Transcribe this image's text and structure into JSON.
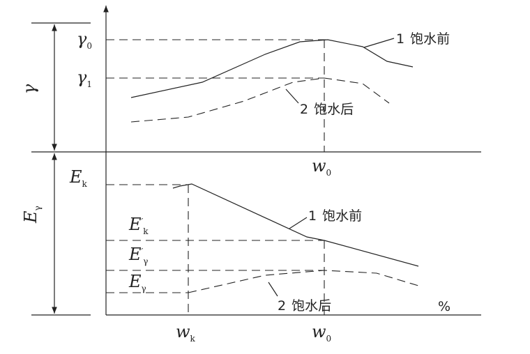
{
  "top_panel": {
    "axis_label": "γ",
    "marks": [
      {
        "symbol": "γ",
        "sub": "0"
      },
      {
        "symbol": "γ",
        "sub": "1"
      }
    ],
    "curves": [
      {
        "number": "1",
        "label": "饱水前"
      },
      {
        "number": "2",
        "label": "饱水后"
      }
    ],
    "x_mark": {
      "symbol": "w",
      "sub": "0"
    }
  },
  "bottom_panel": {
    "axis_label": {
      "symbol": "E",
      "sub": "γ"
    },
    "marks": [
      {
        "symbol": "E",
        "sub": "k"
      },
      {
        "symbol": "E",
        "sub": "k",
        "prime": "′"
      },
      {
        "symbol": "E",
        "sub": "γ",
        "prime": "′"
      },
      {
        "symbol": "E",
        "sub": "γ"
      }
    ],
    "curves": [
      {
        "number": "1",
        "label": "饱水前"
      },
      {
        "number": "2",
        "label": "饱水后"
      }
    ],
    "x_marks": [
      {
        "symbol": "w",
        "sub": "k"
      },
      {
        "symbol": "w",
        "sub": "0"
      }
    ],
    "unit": "%"
  }
}
